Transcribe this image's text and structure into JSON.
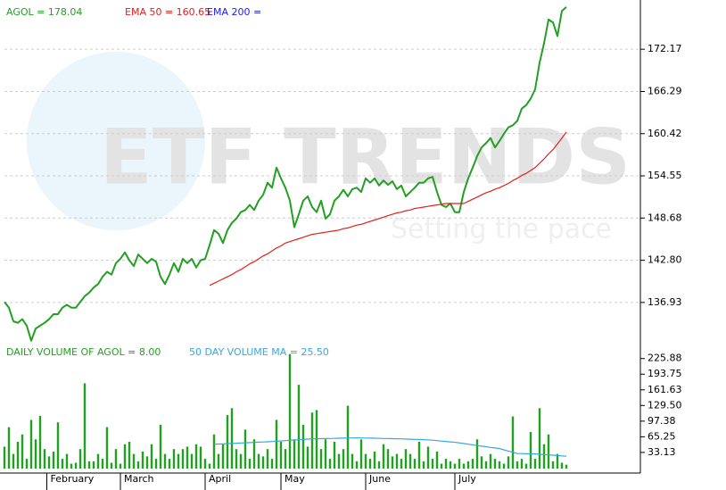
{
  "watermark": {
    "text": "ETF TRENDS",
    "tagline": "Setting the pace"
  },
  "chart_data": [
    {
      "type": "line",
      "ylim": [
        131.2,
        178.4
      ],
      "yticks": [
        136.93,
        {
          "value": 142.8,
          "label": "142.80"
        },
        148.68,
        154.55,
        160.42,
        166.29,
        172.17
      ],
      "grid": true,
      "series": [
        {
          "name": "AGOL = 178.04",
          "color": "#22a022",
          "values": [
            137.0,
            136.2,
            134.3,
            134.1,
            134.6,
            133.7,
            131.6,
            133.3,
            133.7,
            134.1,
            134.6,
            135.3,
            135.3,
            136.2,
            136.6,
            136.2,
            136.2,
            137.0,
            137.8,
            138.3,
            139.0,
            139.5,
            140.5,
            141.2,
            140.8,
            142.4,
            143.0,
            143.9,
            142.8,
            142.0,
            143.6,
            143.0,
            142.4,
            143.0,
            142.6,
            140.5,
            139.5,
            140.8,
            142.4,
            141.2,
            143.0,
            142.4,
            143.0,
            141.8,
            142.8,
            143.0,
            144.9,
            147.0,
            146.5,
            145.2,
            147.0,
            148.0,
            148.6,
            149.5,
            149.8,
            150.5,
            149.8,
            151.1,
            151.9,
            153.6,
            152.9,
            155.7,
            154.2,
            152.9,
            151.1,
            147.4,
            149.2,
            151.1,
            151.7,
            150.2,
            149.5,
            151.1,
            148.6,
            149.2,
            151.1,
            151.7,
            152.6,
            151.7,
            152.7,
            152.9,
            152.3,
            154.2,
            153.6,
            154.2,
            153.2,
            153.9,
            153.3,
            153.8,
            152.7,
            153.2,
            151.7,
            152.3,
            152.9,
            153.6,
            153.6,
            154.2,
            154.4,
            152.3,
            150.5,
            150.2,
            150.7,
            149.5,
            149.5,
            152.3,
            154.2,
            155.7,
            157.3,
            158.5,
            159.1,
            159.8,
            158.5,
            159.4,
            160.4,
            161.3,
            161.6,
            162.2,
            163.9,
            164.4,
            165.3,
            166.6,
            170.3,
            173.0,
            176.3,
            175.9,
            174.0,
            177.5,
            178.04
          ]
        },
        {
          "name": "EMA 50 = 160.65",
          "color": "#e02020",
          "values": [
            null,
            null,
            null,
            null,
            null,
            null,
            null,
            null,
            null,
            null,
            null,
            null,
            null,
            null,
            null,
            null,
            null,
            null,
            null,
            null,
            null,
            null,
            null,
            null,
            null,
            null,
            null,
            null,
            null,
            null,
            null,
            null,
            null,
            null,
            null,
            null,
            null,
            null,
            null,
            null,
            null,
            null,
            null,
            null,
            null,
            null,
            139.3,
            139.6,
            139.9,
            140.2,
            140.5,
            140.8,
            141.2,
            141.5,
            141.9,
            142.3,
            142.6,
            143.0,
            143.4,
            143.7,
            144.1,
            144.5,
            144.8,
            145.2,
            145.4,
            145.6,
            145.8,
            146.0,
            146.2,
            146.4,
            146.5,
            146.6,
            146.7,
            146.8,
            146.9,
            147.0,
            147.2,
            147.3,
            147.5,
            147.7,
            147.8,
            148.0,
            148.2,
            148.4,
            148.6,
            148.8,
            149.0,
            149.2,
            149.4,
            149.5,
            149.7,
            149.8,
            150.0,
            150.1,
            150.2,
            150.3,
            150.4,
            150.5,
            150.6,
            150.7,
            150.7,
            150.7,
            150.7,
            150.7,
            151.0,
            151.3,
            151.6,
            151.9,
            152.2,
            152.4,
            152.7,
            152.9,
            153.2,
            153.5,
            153.9,
            154.2,
            154.6,
            154.9,
            155.3,
            155.7,
            156.3,
            156.9,
            157.6,
            158.2,
            159.0,
            159.8,
            160.65
          ]
        },
        {
          "name": "EMA 200 =",
          "color": "#1a1aee",
          "values": [
            null,
            null,
            null,
            null,
            null,
            null,
            null,
            null,
            null,
            null,
            null,
            null,
            null,
            null,
            null,
            null,
            null,
            null,
            null,
            null,
            null,
            null,
            null,
            null,
            null,
            null,
            null,
            null,
            null,
            null,
            null,
            null,
            null,
            null,
            null,
            null,
            null,
            null,
            null,
            null,
            null,
            null,
            null,
            null,
            null,
            null,
            null,
            null,
            null,
            null,
            null,
            null,
            null,
            null,
            null,
            null,
            null,
            null,
            null,
            null,
            null,
            null,
            null,
            null,
            null,
            null,
            null,
            null,
            null,
            null,
            null,
            null,
            null,
            null,
            null,
            null,
            null,
            null,
            null,
            null,
            null,
            null,
            null,
            null,
            null,
            null,
            null,
            null,
            null,
            null,
            null,
            null,
            null,
            null,
            null,
            null,
            null,
            null,
            null,
            null,
            null,
            null,
            null,
            null,
            null,
            null,
            null,
            null,
            null,
            null,
            null,
            null,
            null,
            null,
            null,
            null,
            null,
            null,
            null,
            null,
            null,
            null,
            null,
            null,
            null,
            null,
            null
          ]
        }
      ]
    },
    {
      "type": "bar",
      "ylim": [
        0,
        240
      ],
      "yticks": [
        33.13,
        65.25,
        97.38,
        {
          "value": 129.5,
          "label": "129.50"
        },
        161.63,
        193.75,
        225.88
      ],
      "xticks": [
        {
          "value": 9.5,
          "label": "February"
        },
        {
          "value": 26,
          "label": "March"
        },
        {
          "value": 45,
          "label": "April"
        },
        {
          "value": 62,
          "label": "May"
        },
        {
          "value": 81,
          "label": "June"
        },
        {
          "value": 101,
          "label": "July"
        }
      ],
      "series": [
        {
          "name": "DAILY VOLUME OF AGOL = 8.00",
          "type": "bar",
          "color": "#22a022",
          "values": [
            45,
            85,
            30,
            55,
            70,
            20,
            100,
            60,
            108,
            40,
            25,
            35,
            95,
            20,
            30,
            10,
            12,
            40,
            175,
            15,
            15,
            30,
            20,
            85,
            12,
            40,
            10,
            50,
            55,
            30,
            15,
            35,
            25,
            50,
            20,
            90,
            30,
            20,
            40,
            30,
            40,
            45,
            30,
            50,
            45,
            20,
            10,
            70,
            30,
            50,
            110,
            124,
            40,
            30,
            80,
            20,
            60,
            30,
            25,
            40,
            20,
            100,
            55,
            40,
            235,
            60,
            172,
            90,
            45,
            115,
            120,
            40,
            60,
            20,
            55,
            30,
            40,
            129,
            30,
            15,
            60,
            30,
            20,
            35,
            15,
            50,
            40,
            25,
            30,
            20,
            40,
            30,
            20,
            55,
            15,
            45,
            20,
            35,
            10,
            20,
            15,
            10,
            20,
            10,
            15,
            20,
            60,
            25,
            15,
            30,
            20,
            15,
            10,
            25,
            107,
            15,
            20,
            10,
            75,
            20,
            124,
            50,
            70,
            15,
            30,
            12,
            8
          ]
        },
        {
          "name": "50 DAY VOLUME MA = 25.50",
          "type": "line",
          "color": "#33aadd",
          "values": [
            null,
            null,
            null,
            null,
            null,
            null,
            null,
            null,
            null,
            null,
            null,
            null,
            null,
            null,
            null,
            null,
            null,
            null,
            null,
            null,
            null,
            null,
            null,
            null,
            null,
            null,
            null,
            null,
            null,
            null,
            null,
            null,
            null,
            null,
            null,
            null,
            null,
            null,
            null,
            null,
            null,
            null,
            null,
            null,
            null,
            null,
            null,
            50,
            50.4,
            50.8,
            51.3,
            51.7,
            52.1,
            52.5,
            52.9,
            53.3,
            53.8,
            54.2,
            54.6,
            55,
            55.6,
            56.2,
            56.8,
            57.4,
            58,
            58.6,
            59.2,
            59.8,
            60.4,
            61,
            61.2,
            61.4,
            61.6,
            61.8,
            62,
            62.2,
            62.4,
            62.6,
            62.8,
            63,
            62.8,
            62.6,
            62.4,
            62.2,
            62,
            61.8,
            61.6,
            61.4,
            61.2,
            61,
            60.7,
            60.3,
            60,
            59.7,
            59.3,
            59,
            58.2,
            57.3,
            56.5,
            55.7,
            54.8,
            54,
            52.7,
            51.3,
            50,
            48.7,
            47.3,
            46,
            44.8,
            43.5,
            42.3,
            41,
            38.5,
            36,
            33.5,
            31,
            30.8,
            30.5,
            30.3,
            30,
            29.4,
            28.7,
            28.1,
            27.4,
            26.8,
            26.1,
            25.5
          ]
        }
      ]
    }
  ]
}
